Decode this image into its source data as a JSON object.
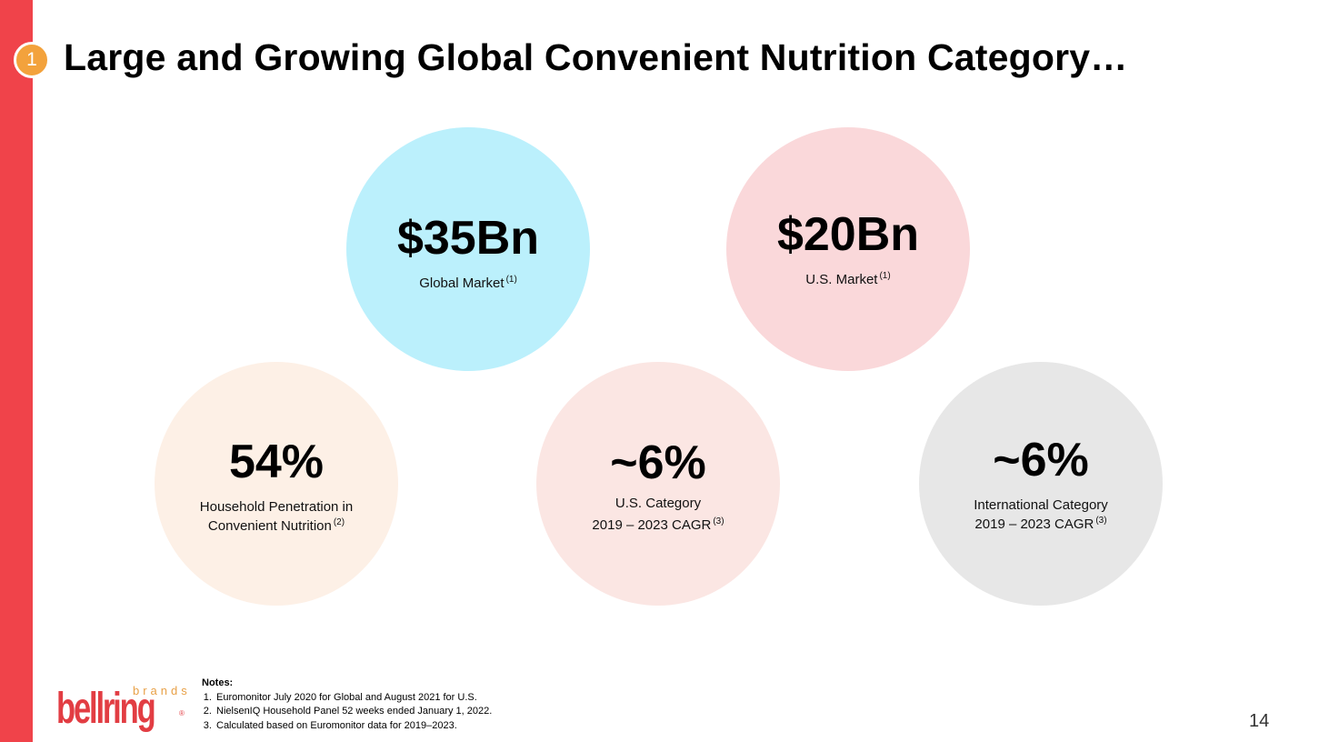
{
  "slide": {
    "section_number": "1",
    "title": "Large and Growing Global Convenient Nutrition Category…",
    "page_number": "14",
    "accent_color": "#f0434a"
  },
  "stats": [
    {
      "value": "$35Bn",
      "label_lines": [
        "Global Market"
      ],
      "footnote": "(1)",
      "color": "#bbf0fc"
    },
    {
      "value": "$20Bn",
      "label_lines": [
        "U.S. Market"
      ],
      "footnote": "(1)",
      "color": "#fad8da"
    },
    {
      "value": "54%",
      "label_lines": [
        "Household Penetration in",
        "Convenient Nutrition"
      ],
      "footnote": "(2)",
      "color": "#fdf0e6"
    },
    {
      "value": "~6%",
      "label_lines": [
        "U.S. Category",
        "2019 – 2023 CAGR"
      ],
      "footnote": "(3)",
      "color": "#fbe6e3"
    },
    {
      "value": "~6%",
      "label_lines": [
        "International Category",
        "2019 – 2023 CAGR"
      ],
      "footnote": "(3)",
      "color": "#e7e7e7"
    }
  ],
  "notes": {
    "title": "Notes:",
    "items": [
      "Euromonitor July 2020 for Global and August 2021 for U.S.",
      "NielsenIQ Household Panel 52 weeks ended January 1, 2022.",
      "Calculated based on Euromonitor data for 2019–2023."
    ]
  },
  "logo": {
    "brand": "bellring",
    "sub": "brands",
    "reg": "®"
  }
}
